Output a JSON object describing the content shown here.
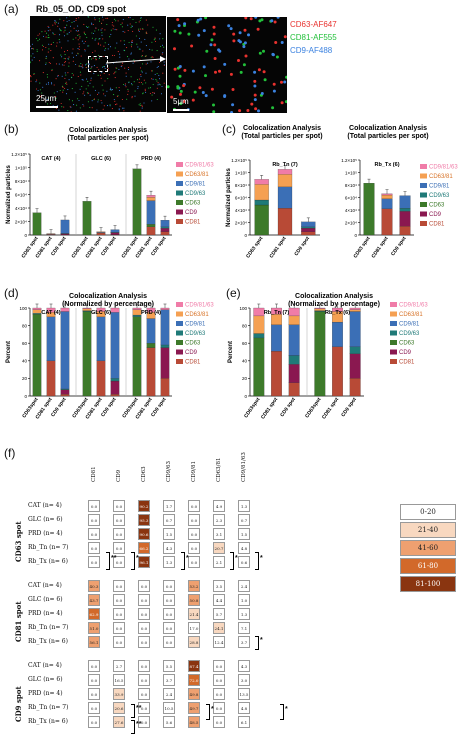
{
  "panels": {
    "a": "(a)",
    "b": "(b)",
    "c": "(c)",
    "d": "(d)",
    "e": "(e)",
    "f": "(f)"
  },
  "micro": {
    "title": "Rb_05_OD, CD9 spot",
    "scale_main": "25μm",
    "scale_zoom": "5μm",
    "legend": [
      {
        "text": "CD63-AF647",
        "color": "#e8322f"
      },
      {
        "text": "CD81-AF555",
        "color": "#22c03a"
      },
      {
        "text": "CD9-AF488",
        "color": "#3b82e0"
      }
    ]
  },
  "legend_items": [
    {
      "label": "CD9/81/63",
      "color": "#f07ca8"
    },
    {
      "label": "CD63/81",
      "color": "#f5a052"
    },
    {
      "label": "CD9/81",
      "color": "#3b6fb6"
    },
    {
      "label": "CD9/63",
      "color": "#1f7a78"
    },
    {
      "label": "CD63",
      "color": "#3d7a2a"
    },
    {
      "label": "CD9",
      "color": "#8a1850"
    },
    {
      "label": "CD81",
      "color": "#b84a36"
    }
  ],
  "chart_data": [
    {
      "id": "b",
      "type": "bar",
      "stacked": true,
      "title": "Colocalization Analysis\n(Total particles per spot)",
      "ylabel": "Normalized particles",
      "ylim": [
        0,
        120000
      ],
      "yticks": [
        "0",
        "2×10⁴",
        "4×10⁴",
        "6×10⁴",
        "8×10⁴",
        "1×10⁵",
        "1.2×10⁵"
      ],
      "groups": [
        "CAT (4)",
        "GLC (6)",
        "PRD (4)"
      ],
      "categories": [
        "CD63 spot",
        "CD81 spot",
        "CD9 spot",
        "CD63 spot",
        "CD81 spot",
        "CD9 spot",
        "CD63 spot",
        "CD81 spot",
        "CD9 spot"
      ],
      "series": [
        {
          "name": "CD81",
          "values": [
            0,
            1000,
            500,
            0,
            3000,
            500,
            0,
            12000,
            5000
          ]
        },
        {
          "name": "CD9",
          "values": [
            0,
            0,
            1500,
            0,
            0,
            3000,
            0,
            0,
            5000
          ]
        },
        {
          "name": "CD63",
          "values": [
            33000,
            0,
            0,
            50000,
            0,
            0,
            98000,
            4000,
            0
          ]
        },
        {
          "name": "CD9/63",
          "values": [
            0,
            0,
            300,
            0,
            0,
            500,
            0,
            0,
            2000
          ]
        },
        {
          "name": "CD9/81",
          "values": [
            0,
            500,
            20000,
            0,
            1000,
            4000,
            0,
            35000,
            10000
          ]
        },
        {
          "name": "CD63/81",
          "values": [
            0,
            500,
            0,
            0,
            1000,
            0,
            0,
            5000,
            0
          ]
        },
        {
          "name": "CD9/81/63",
          "values": [
            0,
            0,
            0,
            0,
            0,
            0,
            0,
            3000,
            0
          ]
        }
      ]
    },
    {
      "id": "c1",
      "type": "bar",
      "stacked": true,
      "title": "Colocalization Analysis\n(Total particles per spot)",
      "ylabel": "Normalized particles",
      "ylim": [
        0,
        120000
      ],
      "yticks": [
        "0",
        "2×10⁴",
        "4×10⁴",
        "6×10⁴",
        "8×10⁴",
        "1×10⁵",
        "1.2×10⁵"
      ],
      "groups": [
        "Rb_Tn (7)"
      ],
      "categories": [
        "CD63 spot",
        "CD81 spot",
        "CD9 spot"
      ],
      "series": [
        {
          "name": "CD81",
          "values": [
            0,
            43000,
            5000
          ]
        },
        {
          "name": "CD9",
          "values": [
            0,
            0,
            6000
          ]
        },
        {
          "name": "CD63",
          "values": [
            48000,
            0,
            0
          ]
        },
        {
          "name": "CD9/63",
          "values": [
            8000,
            0,
            2000
          ]
        },
        {
          "name": "CD9/81",
          "values": [
            0,
            34000,
            8000
          ]
        },
        {
          "name": "CD63/81",
          "values": [
            25000,
            20000,
            0
          ]
        },
        {
          "name": "CD9/81/63",
          "values": [
            8000,
            8000,
            0
          ]
        }
      ]
    },
    {
      "id": "c2",
      "type": "bar",
      "stacked": true,
      "title": "Colocalization Analysis\n(Total particles per spot)",
      "ylabel": "",
      "ylim": [
        0,
        120000
      ],
      "yticks": [
        "0",
        "2×10⁴",
        "4×10⁴",
        "6×10⁴",
        "8×10⁴",
        "1×10⁵",
        "1.2×10⁵"
      ],
      "groups": [
        "Rb_Tx (6)"
      ],
      "categories": [
        "CD63 spot",
        "CD81 spot",
        "CD9 spot"
      ],
      "series": [
        {
          "name": "CD81",
          "values": [
            0,
            42000,
            14000
          ]
        },
        {
          "name": "CD9",
          "values": [
            0,
            0,
            24000
          ]
        },
        {
          "name": "CD63",
          "values": [
            83000,
            0,
            0
          ]
        },
        {
          "name": "CD9/63",
          "values": [
            0,
            0,
            5000
          ]
        },
        {
          "name": "CD9/81",
          "values": [
            0,
            16000,
            20000
          ]
        },
        {
          "name": "CD63/81",
          "values": [
            0,
            6000,
            0
          ]
        },
        {
          "name": "CD9/81/63",
          "values": [
            0,
            2000,
            0
          ]
        }
      ]
    },
    {
      "id": "d",
      "type": "bar",
      "stacked": true,
      "title": "Colocalization Analysis\n(Normalized by percentage)",
      "ylabel": "Percent",
      "ylim": [
        0,
        100
      ],
      "yticks": [
        "0",
        "20",
        "40",
        "60",
        "80",
        "100"
      ],
      "groups": [
        "CAT (4)",
        "GLC (6)",
        "PRD (4)"
      ],
      "categories": [
        "CD63spot",
        "CD81 spot",
        "CD9 spot",
        "CD63spot",
        "CD81 spot",
        "CD9 spot",
        "CD63spot",
        "CD81 spot",
        "CD9 spot"
      ],
      "series": [
        {
          "name": "CD81",
          "values": [
            0,
            40,
            2,
            0,
            40,
            2,
            0,
            55,
            20
          ]
        },
        {
          "name": "CD9",
          "values": [
            0,
            0,
            5,
            0,
            0,
            15,
            0,
            0,
            35
          ]
        },
        {
          "name": "CD63",
          "values": [
            93,
            0,
            0,
            96,
            0,
            0,
            90,
            5,
            0
          ]
        },
        {
          "name": "CD9/63",
          "values": [
            1,
            0,
            1,
            1,
            0,
            3,
            2,
            0,
            3
          ]
        },
        {
          "name": "CD9/81",
          "values": [
            0,
            50,
            88,
            0,
            50,
            75,
            0,
            28,
            40
          ]
        },
        {
          "name": "CD63/81",
          "values": [
            4,
            5,
            0,
            2,
            6,
            0,
            6,
            7,
            0
          ]
        },
        {
          "name": "CD9/81/63",
          "values": [
            2,
            5,
            4,
            1,
            4,
            5,
            2,
            5,
            2
          ]
        }
      ]
    },
    {
      "id": "e",
      "type": "bar",
      "stacked": true,
      "title": "Colocalization Analysis\n(Normalized by percentage)",
      "ylabel": "Percent",
      "ylim": [
        0,
        100
      ],
      "yticks": [
        "0",
        "20",
        "40",
        "60",
        "80",
        "100"
      ],
      "groups": [
        "Rb_Tn (7)",
        "Rb_Tx (6)"
      ],
      "categories": [
        "CD63spot",
        "CD81 spot",
        "CD9 spot",
        "CD63spot",
        "CD81 spot",
        "CD9 spot"
      ],
      "series": [
        {
          "name": "CD81",
          "values": [
            0,
            51,
            15,
            0,
            56,
            20
          ]
        },
        {
          "name": "CD9",
          "values": [
            0,
            0,
            21,
            0,
            0,
            28
          ]
        },
        {
          "name": "CD63",
          "values": [
            66,
            0,
            0,
            96,
            0,
            0
          ]
        },
        {
          "name": "CD9/63",
          "values": [
            5,
            0,
            10,
            1,
            0,
            8
          ]
        },
        {
          "name": "CD9/81",
          "values": [
            0,
            30,
            35,
            0,
            28,
            40
          ]
        },
        {
          "name": "CD63/81",
          "values": [
            20,
            12,
            10,
            2,
            12,
            2
          ]
        },
        {
          "name": "CD9/81/63",
          "values": [
            9,
            7,
            9,
            1,
            4,
            2
          ]
        }
      ]
    },
    {
      "id": "f",
      "type": "heatmap",
      "columns": [
        "CD81",
        "CD9",
        "CD63",
        "CD9/63",
        "CD9/81",
        "CD63/81",
        "CD9/81/63"
      ],
      "row_labels": [
        "CAT (n= 4)",
        "GLC (n= 6)",
        "PRD (n= 4)",
        "Rb_Tn (n= 7)",
        "Rb_Tx (n= 6)"
      ],
      "blocks": [
        {
          "name": "CD63 spot",
          "values": [
            [
              0.0,
              0.0,
              90.2,
              1.7,
              0.0,
              4.9,
              1.3
            ],
            [
              0.0,
              0.0,
              95.3,
              0.7,
              0.0,
              2.3,
              0.7
            ],
            [
              0.0,
              0.0,
              90.6,
              1.5,
              0.0,
              3.1,
              1.5
            ],
            [
              0.0,
              0.0,
              66.2,
              4.3,
              0.0,
              20.7,
              4.8
            ],
            [
              0.0,
              0.0,
              96.1,
              1.3,
              0.0,
              2.1,
              0.6
            ]
          ]
        },
        {
          "name": "CD81 spot",
          "values": [
            [
              40.3,
              0.0,
              0.0,
              0.0,
              53.2,
              3.5,
              2.4
            ],
            [
              43.7,
              0.0,
              0.0,
              0.0,
              50.8,
              4.4,
              1.0
            ],
            [
              62.9,
              0.0,
              0.0,
              0.0,
              21.4,
              5.7,
              1.3
            ],
            [
              51.0,
              0.0,
              0.0,
              0.0,
              17.0,
              24.1,
              7.1
            ],
            [
              56.1,
              0.0,
              0.0,
              0.0,
              28.8,
              12.4,
              3.7
            ]
          ]
        },
        {
          "name": "CD9 spot",
          "values": [
            [
              0.0,
              2.7,
              0.0,
              5.5,
              87.4,
              0.0,
              4.3
            ],
            [
              0.0,
              16.5,
              0.0,
              3.7,
              72.0,
              0.0,
              3.0
            ],
            [
              0.0,
              33.9,
              0.0,
              2.4,
              49.8,
              0.0,
              13.5
            ],
            [
              0.0,
              20.6,
              0.0,
              10.5,
              49.7,
              0.0,
              4.8
            ],
            [
              0.0,
              27.6,
              0.0,
              5.6,
              48.5,
              0.0,
              6.1
            ]
          ]
        }
      ],
      "color_scale": [
        {
          "label": "0-20",
          "color": "#ffffff"
        },
        {
          "label": "21-40",
          "color": "#f8d8c0"
        },
        {
          "label": "41-60",
          "color": "#eea070"
        },
        {
          "label": "61-80",
          "color": "#d2692a"
        },
        {
          "label": "81-100",
          "color": "#8a3510"
        }
      ],
      "significance": [
        "**",
        "*",
        "*",
        "*",
        "*",
        "*",
        "**",
        "**",
        "*",
        "*"
      ]
    }
  ]
}
